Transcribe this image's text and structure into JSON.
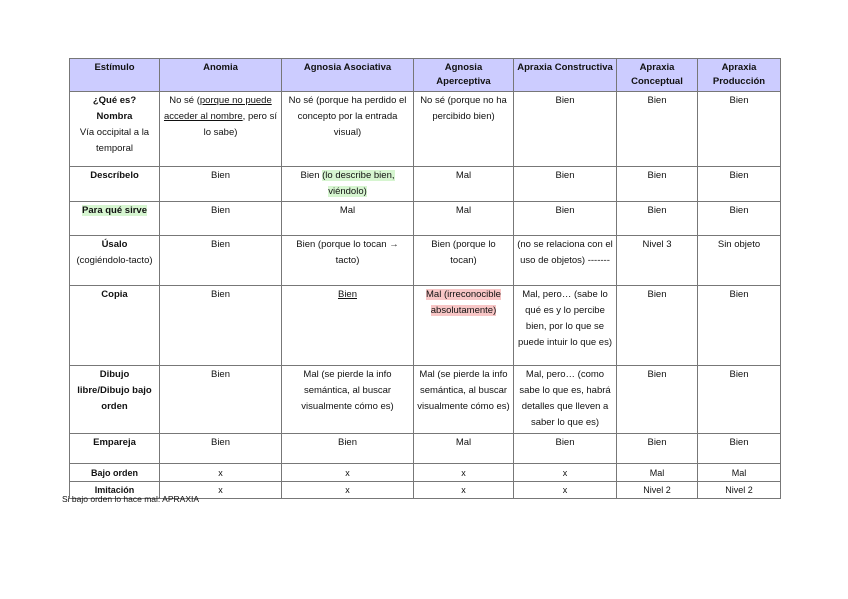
{
  "table": {
    "headers": [
      "Estímulo",
      "Anomia",
      "Agnosia Asociativa",
      "Agnosia Aperceptiva",
      "Apraxia Constructiva",
      "Apraxia Conceptual",
      "Apraxia Producción"
    ],
    "rows": [
      {
        "stimulus": [
          {
            "t": "¿Qué es?\nNombra"
          },
          {
            "t": "\nVía occipital a la temporal",
            "normal": true
          }
        ],
        "cells": [
          [
            {
              "t": "No sé ("
            },
            {
              "t": "porque no puede acceder al nombre",
              "s": "u"
            },
            {
              "t": ", pero sí lo sabe)"
            }
          ],
          [
            {
              "t": "No sé (porque ha perdido el concepto por la entrada visual)"
            }
          ],
          [
            {
              "t": "No sé (porque no ha percibido bien)"
            }
          ],
          [
            {
              "t": "Bien"
            }
          ],
          [
            {
              "t": "Bien"
            }
          ],
          [
            {
              "t": "Bien"
            }
          ]
        ]
      },
      {
        "stimulus": [
          {
            "t": "Descríbelo"
          }
        ],
        "cells": [
          [
            {
              "t": "Bien"
            }
          ],
          [
            {
              "t": "Bien "
            },
            {
              "t": "(lo describe bien, viéndolo)",
              "s": "g"
            }
          ],
          [
            {
              "t": "Mal"
            }
          ],
          [
            {
              "t": "Bien"
            }
          ],
          [
            {
              "t": "Bien"
            }
          ],
          [
            {
              "t": "Bien"
            }
          ]
        ]
      },
      {
        "stimulus": [
          {
            "t": "Para qué sirve",
            "s": "g"
          }
        ],
        "cells": [
          [
            {
              "t": "Bien"
            }
          ],
          [
            {
              "t": "Mal"
            }
          ],
          [
            {
              "t": "Mal"
            }
          ],
          [
            {
              "t": "Bien"
            }
          ],
          [
            {
              "t": "Bien"
            }
          ],
          [
            {
              "t": "Bien"
            }
          ]
        ]
      },
      {
        "stimulus": [
          {
            "t": "Úsalo"
          },
          {
            "t": "\n(cogiéndolo-tacto)",
            "normal": true
          }
        ],
        "cells": [
          [
            {
              "t": "Bien"
            }
          ],
          [
            {
              "t": "Bien (porque lo tocan → tacto)"
            }
          ],
          [
            {
              "t": "Bien (porque lo tocan)"
            }
          ],
          [
            {
              "t": "(no se relaciona con el uso de objetos) -------"
            }
          ],
          [
            {
              "t": "Nivel 3"
            }
          ],
          [
            {
              "t": "Sin objeto"
            }
          ]
        ]
      },
      {
        "stimulus": [
          {
            "t": "Copia"
          }
        ],
        "cells": [
          [
            {
              "t": "Bien"
            }
          ],
          [
            {
              "t": "Bien",
              "s": "u"
            }
          ],
          [
            {
              "t": "Mal (irreconocible absolutamente)",
              "s": "r"
            }
          ],
          [
            {
              "t": "Mal, pero… (sabe lo qué es y lo percibe bien, por lo que se puede intuir lo que es)"
            }
          ],
          [
            {
              "t": "Bien"
            }
          ],
          [
            {
              "t": "Bien"
            }
          ]
        ]
      },
      {
        "stimulus": [
          {
            "t": "Dibujo libre/Dibujo bajo orden"
          }
        ],
        "cells": [
          [
            {
              "t": "Bien"
            }
          ],
          [
            {
              "t": "Mal (se pierde la info semántica, al buscar visualmente cómo es)"
            }
          ],
          [
            {
              "t": "Mal (se pierde la info semántica, al buscar visualmente cómo es)"
            }
          ],
          [
            {
              "t": "Mal, pero… (como sabe lo que es, habrá detalles que lleven a saber lo que es)"
            }
          ],
          [
            {
              "t": "Bien"
            }
          ],
          [
            {
              "t": "Bien"
            }
          ]
        ]
      },
      {
        "stimulus": [
          {
            "t": "Empareja"
          }
        ],
        "cells": [
          [
            {
              "t": "Bien"
            }
          ],
          [
            {
              "t": "Bien"
            }
          ],
          [
            {
              "t": "Mal"
            }
          ],
          [
            {
              "t": "Bien"
            }
          ],
          [
            {
              "t": "Bien"
            }
          ],
          [
            {
              "t": "Bien"
            }
          ]
        ]
      },
      {
        "stimulus": [
          {
            "t": "Bajo orden"
          }
        ],
        "small": true,
        "cells": [
          [
            {
              "t": "x"
            }
          ],
          [
            {
              "t": "x"
            }
          ],
          [
            {
              "t": "x"
            }
          ],
          [
            {
              "t": "x"
            }
          ],
          [
            {
              "t": "Mal"
            }
          ],
          [
            {
              "t": "Mal"
            }
          ]
        ]
      },
      {
        "stimulus": [
          {
            "t": "Imitación"
          }
        ],
        "small": true,
        "cells": [
          [
            {
              "t": "x"
            }
          ],
          [
            {
              "t": "x"
            }
          ],
          [
            {
              "t": "x"
            }
          ],
          [
            {
              "t": "x"
            }
          ],
          [
            {
              "t": "Nivel 2"
            }
          ],
          [
            {
              "t": "Nivel 2"
            }
          ]
        ]
      }
    ]
  },
  "footer": "Si bajo orden lo hace mal: APRAXIA",
  "colors": {
    "header_bg": "#ccccff",
    "green_highlight": "#d6f5d0",
    "red_highlight": "#f8c6c6"
  }
}
